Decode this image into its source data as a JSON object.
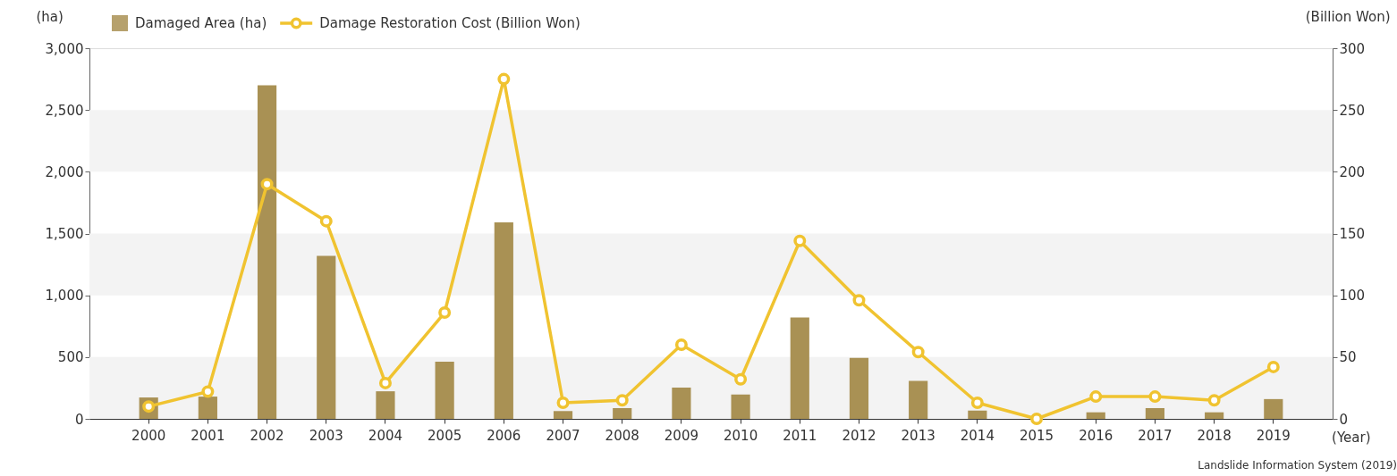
{
  "chart_data": {
    "type": "bar",
    "xlabel": "(Year)",
    "ylabel": "(ha)",
    "y2label": "(Billion Won)",
    "categories": [
      "2000",
      "2001",
      "2002",
      "2003",
      "2004",
      "2005",
      "2006",
      "2007",
      "2008",
      "2009",
      "2010",
      "2011",
      "2012",
      "2013",
      "2014",
      "2015",
      "2016",
      "2017",
      "2018",
      "2019"
    ],
    "series": [
      {
        "name": "Damaged Area (ha)",
        "color": "#a99154",
        "values": [
          173,
          180,
          2700,
          1320,
          223,
          463,
          1590,
          63,
          87,
          253,
          197,
          820,
          493,
          307,
          67,
          0,
          53,
          87,
          53,
          160
        ]
      },
      {
        "name": "Damage Restoration Cost (Billion Won)",
        "type": "line",
        "axis": "y2",
        "color": "#f0c330",
        "marker": "circle",
        "values": [
          10,
          22,
          190,
          160,
          29,
          86,
          275,
          13,
          15,
          60,
          32,
          144,
          96,
          54,
          13,
          0,
          18,
          18,
          15,
          42
        ]
      }
    ],
    "ylim": [
      0,
      3000
    ],
    "yticks": [
      {
        "value": 0,
        "label": "0"
      },
      {
        "value": 500,
        "label": "500"
      },
      {
        "value": 1000,
        "label": "1,000"
      },
      {
        "value": 1500,
        "label": "1,500"
      },
      {
        "value": 2000,
        "label": "2,000"
      },
      {
        "value": 2500,
        "label": "2,500"
      },
      {
        "value": 3000,
        "label": "3,000"
      }
    ],
    "y2lim": [
      0,
      300
    ],
    "y2ticks": [
      0,
      50,
      100,
      150,
      200,
      250,
      300
    ],
    "bands": [
      {
        "axis": "y",
        "from": 0,
        "to": 500,
        "color": "#f3f3f3"
      },
      {
        "axis": "y",
        "from": 1000,
        "to": 1500,
        "color": "#f3f3f3"
      },
      {
        "axis": "y",
        "from": 2000,
        "to": 2500,
        "color": "#f3f3f3"
      }
    ],
    "legend": "top left",
    "annotations": [
      "Landslide Information System (2019)"
    ]
  }
}
